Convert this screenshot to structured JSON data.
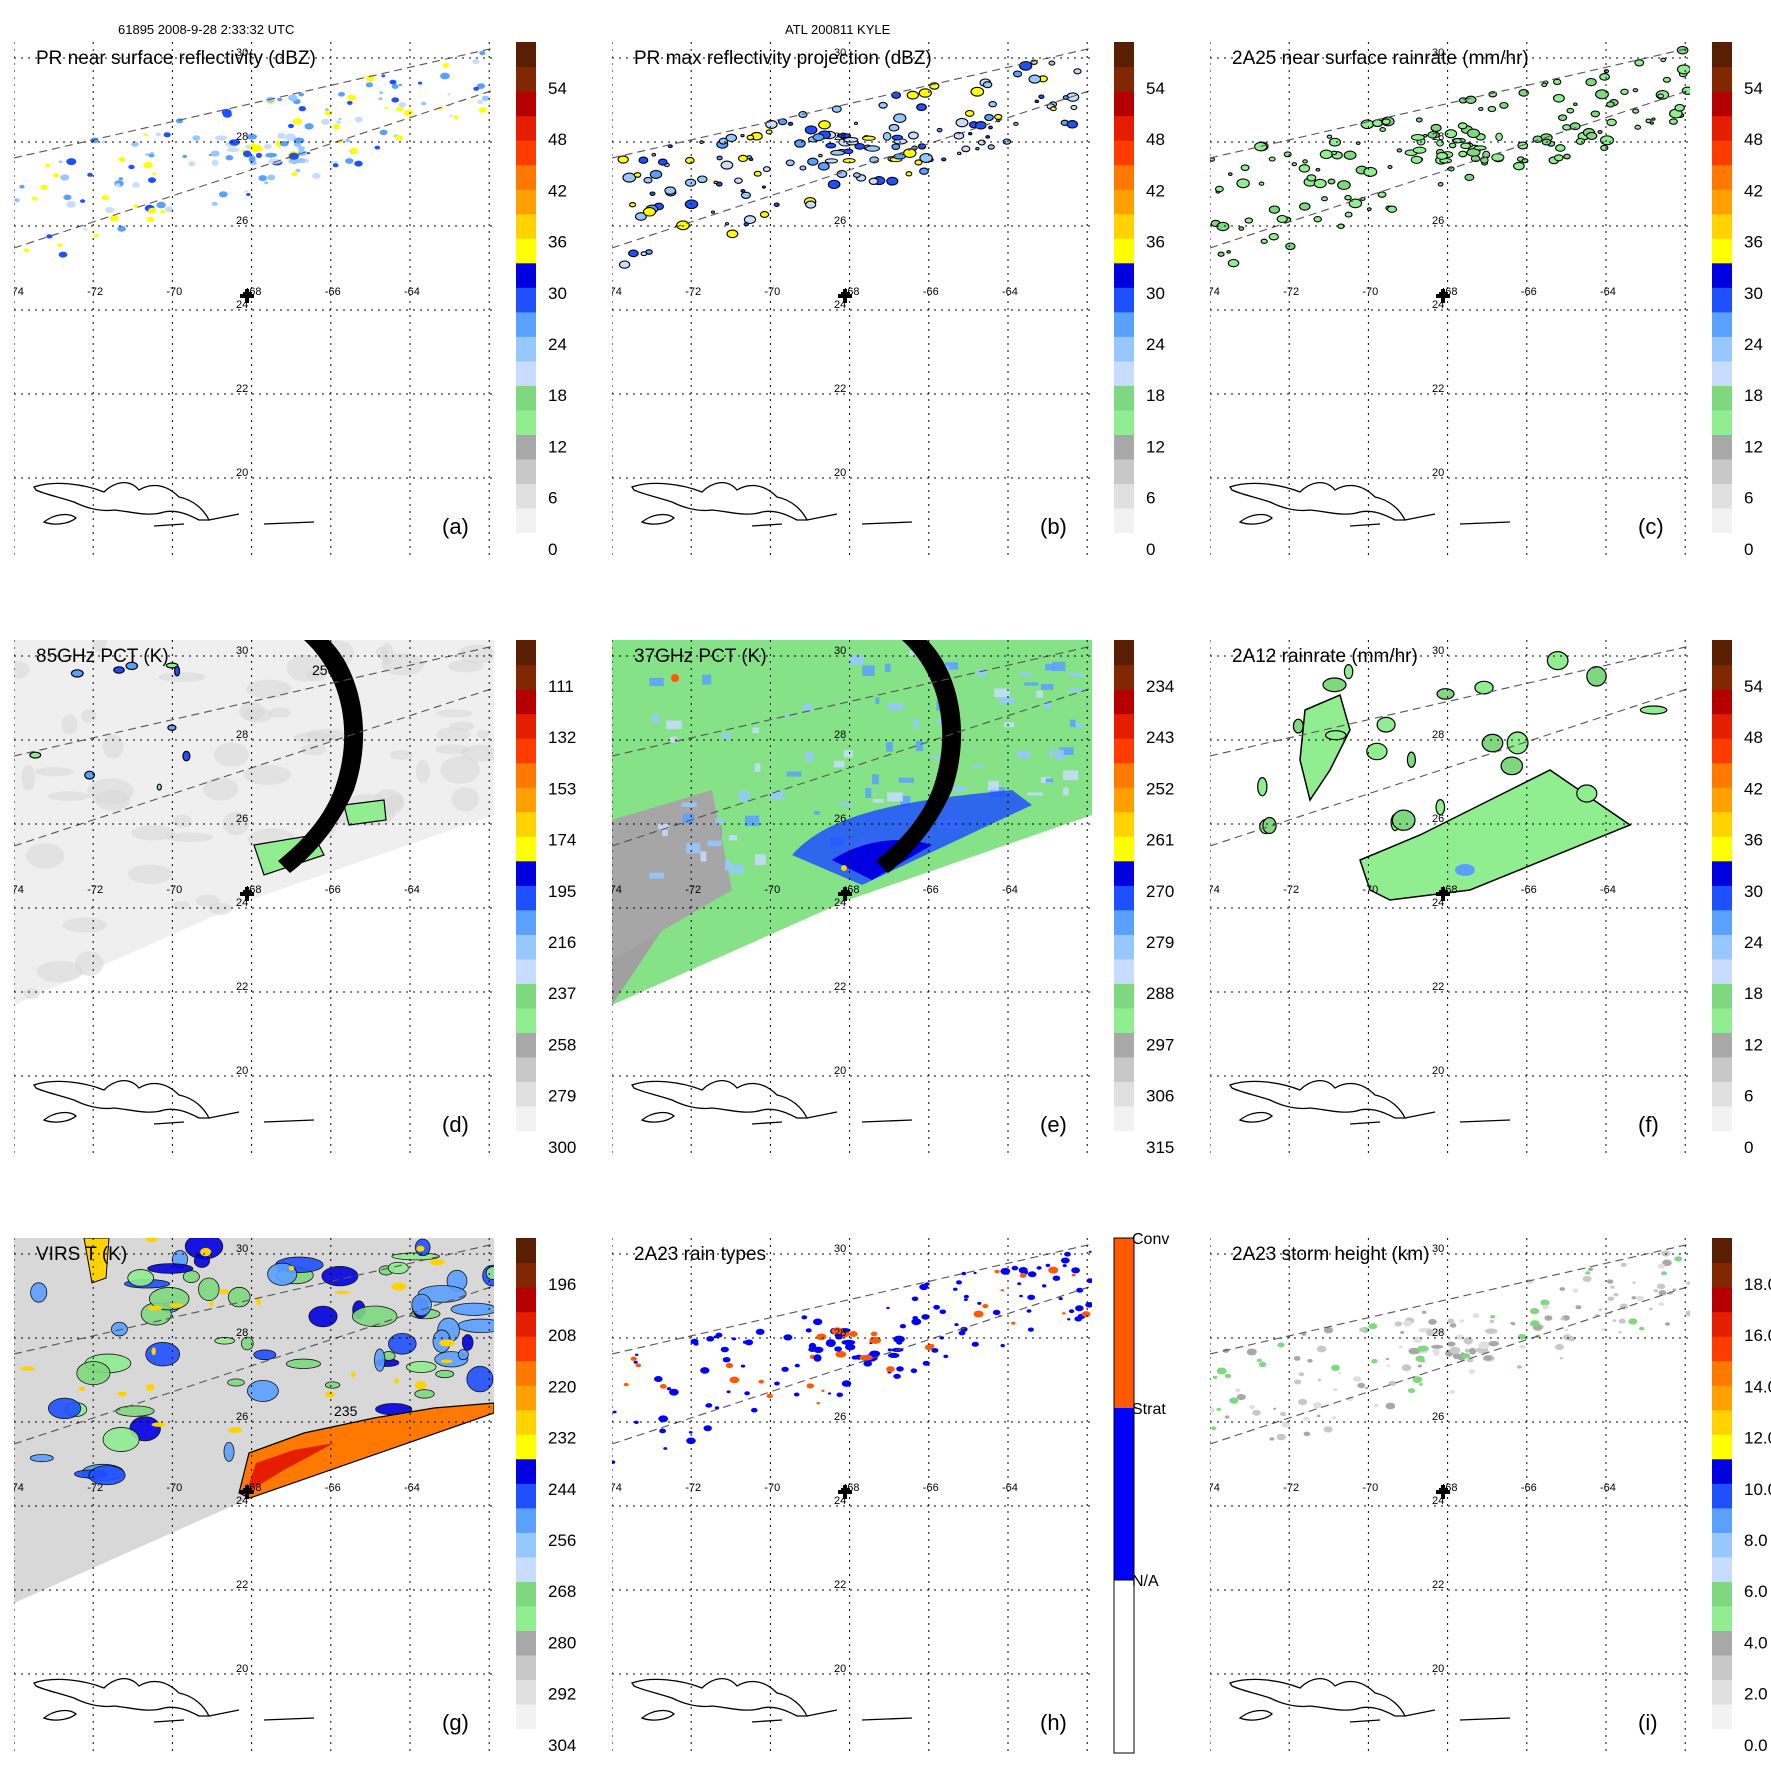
{
  "header": {
    "left": "61895 2008-9-28 2:33:32 UTC",
    "center": "ATL 200811 KYLE"
  },
  "lon_labels": [
    "-74",
    "-72",
    "-70",
    "-68",
    "-66",
    "-64"
  ],
  "lat_labels": [
    "30",
    "28",
    "26",
    "24",
    "22",
    "20"
  ],
  "panels": [
    {
      "id": "a",
      "letter": "(a)",
      "title": "PR near surface reflectivity (dBZ)",
      "colorbar": {
        "ticks": [
          "54",
          "48",
          "42",
          "36",
          "30",
          "24",
          "18",
          "12",
          "6",
          "0"
        ],
        "range": [
          0,
          60
        ]
      },
      "swath": "pr",
      "field": "pr-scatter",
      "field_color": "blue"
    },
    {
      "id": "b",
      "letter": "(b)",
      "title": "PR max reflectivity projection (dBZ)",
      "colorbar": {
        "ticks": [
          "54",
          "48",
          "42",
          "36",
          "30",
          "24",
          "18",
          "12",
          "6",
          "0"
        ],
        "range": [
          0,
          60
        ]
      },
      "swath": "pr",
      "field": "pr-contoured",
      "field_color": "blue"
    },
    {
      "id": "c",
      "letter": "(c)",
      "title": "2A25 near surface rainrate (mm/hr)",
      "colorbar": {
        "ticks": [
          "54",
          "48",
          "42",
          "36",
          "30",
          "24",
          "18",
          "12",
          "6",
          "0"
        ],
        "range": [
          0,
          60
        ]
      },
      "swath": "pr",
      "field": "pr-contoured",
      "field_color": "green"
    },
    {
      "id": "d",
      "letter": "(d)",
      "title": "85GHz PCT (K)",
      "colorbar": {
        "ticks": [
          "111",
          "132",
          "153",
          "174",
          "195",
          "216",
          "237",
          "258",
          "279",
          "300"
        ],
        "range": [
          90,
          300
        ]
      },
      "swath": "tmi",
      "field": "tmi-grey",
      "field_color": "grey",
      "contour_label": "250"
    },
    {
      "id": "e",
      "letter": "(e)",
      "title": "37GHz PCT (K)",
      "colorbar": {
        "ticks": [
          "234",
          "243",
          "252",
          "261",
          "270",
          "279",
          "288",
          "297",
          "306",
          "315"
        ],
        "range": [
          225,
          315
        ]
      },
      "swath": "tmi",
      "field": "tmi-green",
      "field_color": "green"
    },
    {
      "id": "f",
      "letter": "(f)",
      "title": "2A12 rainrate (mm/hr)",
      "colorbar": {
        "ticks": [
          "54",
          "48",
          "42",
          "36",
          "30",
          "24",
          "18",
          "12",
          "6",
          "0"
        ],
        "range": [
          0,
          60
        ]
      },
      "swath": "tmi",
      "field": "tmi-rain",
      "field_color": "green"
    },
    {
      "id": "g",
      "letter": "(g)",
      "title": "VIRS T (K)",
      "colorbar": {
        "ticks": [
          "196",
          "208",
          "220",
          "232",
          "244",
          "256",
          "268",
          "280",
          "292",
          "304"
        ],
        "range": [
          184,
          304
        ]
      },
      "swath": "virs",
      "field": "virs",
      "field_color": "blue",
      "contour_label": "235"
    },
    {
      "id": "h",
      "letter": "(h)",
      "title": "2A23 rain types",
      "colorbar": {
        "ticks": [
          "Conv",
          "Strat",
          "N/A"
        ],
        "categorical": true
      },
      "swath": "pr",
      "field": "pr-types",
      "field_color": "blue"
    },
    {
      "id": "i",
      "letter": "(i)",
      "title": "2A23 storm height (km)",
      "colorbar": {
        "ticks": [
          "18.0",
          "16.0",
          "14.0",
          "12.0",
          "10.0",
          "8.0",
          "6.0",
          "4.0",
          "2.0",
          "0.0"
        ],
        "range": [
          0,
          20
        ]
      },
      "swath": "pr",
      "field": "pr-grey",
      "field_color": "grey"
    }
  ],
  "colors": {
    "scale": [
      "#ffffff",
      "#f2f2f2",
      "#e0e0e0",
      "#c8c8c8",
      "#a8a8a8",
      "#90ee90",
      "#7fd87f",
      "#c8dcff",
      "#96c8ff",
      "#5aa0ff",
      "#1e50ff",
      "#0000e0",
      "#ffff00",
      "#ffd200",
      "#ffa000",
      "#ff7800",
      "#ff3c00",
      "#e61e00",
      "#b40000",
      "#822800",
      "#5a1e00"
    ],
    "rain_types": {
      "conv": "#ff5a00",
      "strat": "#0000ff",
      "na": "#ffffff"
    }
  }
}
